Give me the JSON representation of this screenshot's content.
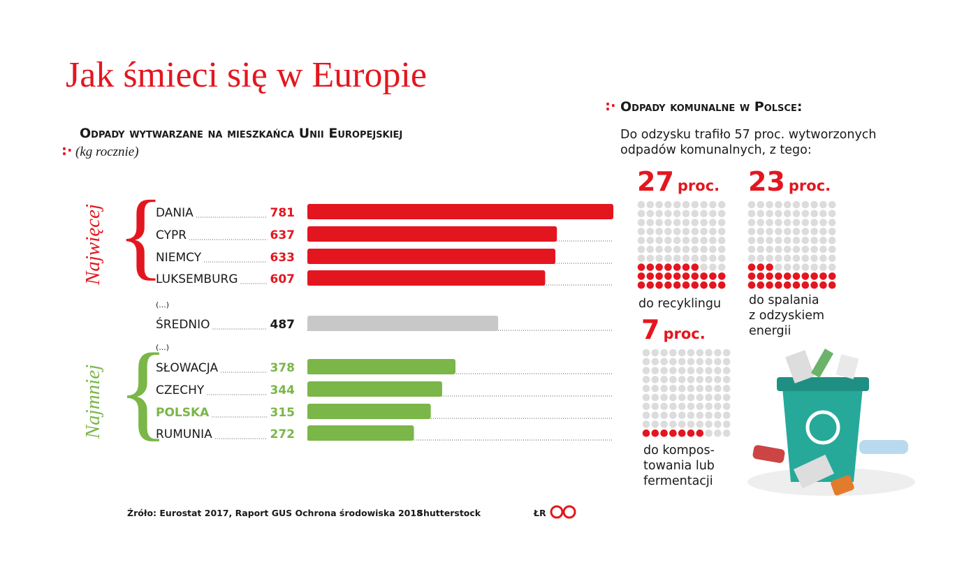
{
  "title": "Jak śmieci się w Europie",
  "chart_data": [
    {
      "type": "bar",
      "title": "Odpady wytwarzane na mieszkańca Unii Europejskiej",
      "subtitle": "(kg rocznie)",
      "categories": [
        "DANIA",
        "CYPR",
        "NIEMCY",
        "LUKSEMBURG",
        "(...)",
        "ŚREDNIO",
        "(...)",
        "SŁOWACJA",
        "CZECHY",
        "POLSKA",
        "RUMUNIA"
      ],
      "values": [
        781,
        637,
        633,
        607,
        null,
        487,
        null,
        378,
        344,
        315,
        272
      ],
      "colors": [
        "#e3161f",
        "#e3161f",
        "#e3161f",
        "#e3161f",
        null,
        "#c8c8c8",
        null,
        "#7ab648",
        "#7ab648",
        "#7ab648",
        "#7ab648"
      ],
      "value_colors": [
        "#e3161f",
        "#e3161f",
        "#e3161f",
        "#e3161f",
        null,
        "#1a1a1a",
        null,
        "#7ab648",
        "#7ab648",
        "#7ab648",
        "#7ab648"
      ],
      "label_colors": [
        "#1a1a1a",
        "#1a1a1a",
        "#1a1a1a",
        "#1a1a1a",
        "#1a1a1a",
        "#1a1a1a",
        "#1a1a1a",
        "#1a1a1a",
        "#1a1a1a",
        "#7ab648",
        "#1a1a1a"
      ],
      "groups": [
        {
          "label": "Najwięcej",
          "color": "#e3161f"
        },
        {
          "label": "Najmniej",
          "color": "#7ab648"
        }
      ],
      "xlim": [
        0,
        781
      ]
    },
    {
      "type": "waffle",
      "title": "Odpady komunalne w Polsce:",
      "intro": [
        "Do odzysku trafiło 57 proc. wytworzonych",
        "odpadów komunalnych, z tego:"
      ],
      "color": "#e3161f",
      "empty_color": "#dcdcdc",
      "panels": [
        {
          "value": 27,
          "unit": "proc.",
          "label": [
            "do recyklingu"
          ]
        },
        {
          "value": 23,
          "unit": "proc.",
          "label": [
            "do spalania",
            "z odzyskiem",
            "energii"
          ]
        },
        {
          "value": 7,
          "unit": "proc.",
          "label": [
            "do kompos-",
            "towania lub",
            "fermentacji"
          ]
        }
      ]
    }
  ],
  "footer": {
    "source": "Źróło: Eurostat 2017, Raport GUS Ochrona środowiska 2018",
    "photo": "Shutterstock",
    "author": "ŁR"
  }
}
